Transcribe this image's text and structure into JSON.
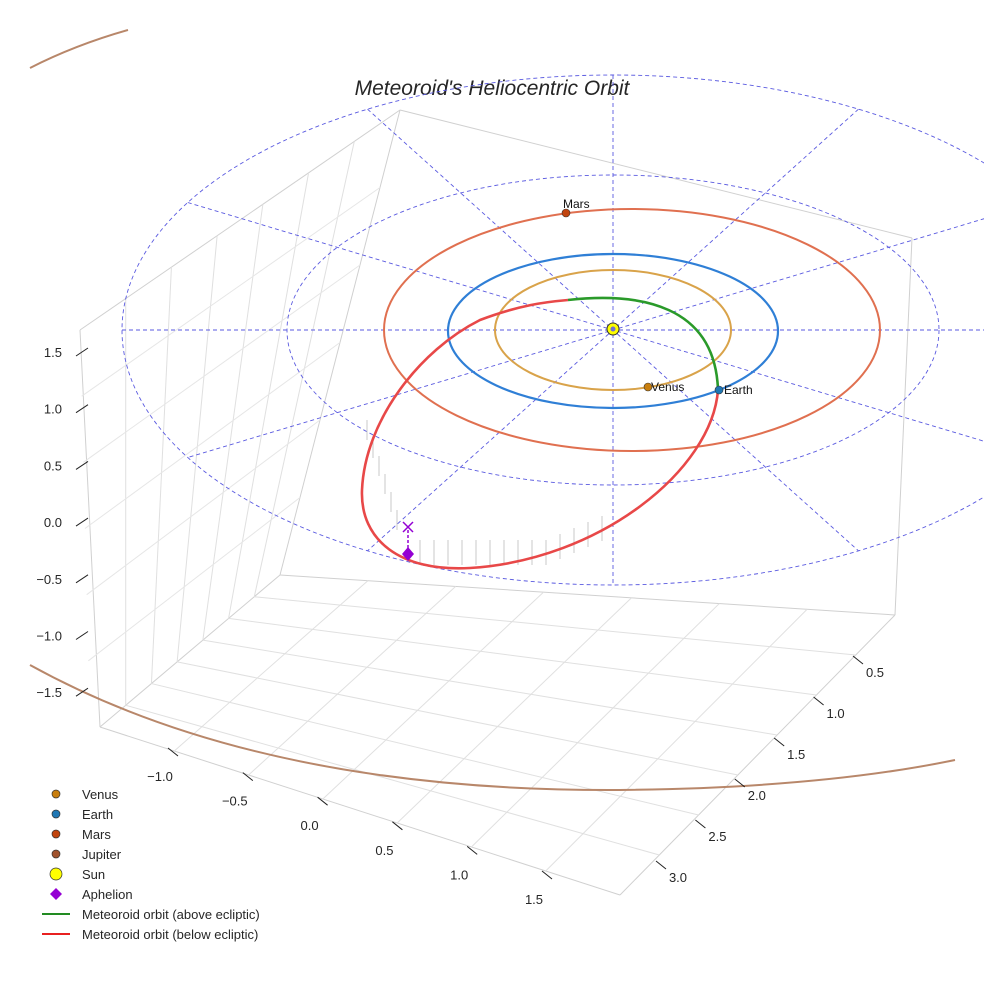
{
  "chart_data": {
    "type": "line",
    "projection": "3d",
    "title": "Meteoroid's Heliocentric Orbit",
    "xlabel": "",
    "ylabel": "",
    "zlabel": "",
    "xlim": [
      -1.3,
      1.8
    ],
    "ylim": [
      0.3,
      3.3
    ],
    "zlim": [
      -1.7,
      1.7
    ],
    "grid": true,
    "legend_position": "bottom-left",
    "x_ticks": [
      "−1.0",
      "−0.5",
      "0.0",
      "0.5",
      "1.0",
      "1.5"
    ],
    "y_ticks": [
      "0.5",
      "1.0",
      "1.5",
      "2.0",
      "2.5",
      "3.0"
    ],
    "z_ticks": [
      "1.5",
      "1.0",
      "0.5",
      "0.0",
      "−0.5",
      "−1.0",
      "−1.5"
    ],
    "planet_orbits_au": {
      "Venus": 0.723,
      "Earth": 1.0,
      "Mars": 1.524,
      "Jupiter": 5.2
    },
    "planet_labels": [
      "Mars",
      "Venus",
      "Earth"
    ],
    "legend": [
      {
        "label": "Venus",
        "marker": "circle",
        "color": "#c87e0e"
      },
      {
        "label": "Earth",
        "marker": "circle",
        "color": "#1f77b4"
      },
      {
        "label": "Mars",
        "marker": "circle",
        "color": "#c1440e"
      },
      {
        "label": "Jupiter",
        "marker": "circle",
        "color": "#a0522d"
      },
      {
        "label": "Sun",
        "marker": "circle-large",
        "color": "#ffff00"
      },
      {
        "label": "Aphelion",
        "marker": "diamond",
        "color": "#9400d3"
      },
      {
        "label": "Meteoroid orbit (above ecliptic)",
        "marker": "line",
        "color": "#228b22"
      },
      {
        "label": "Meteoroid orbit (below ecliptic)",
        "marker": "line",
        "color": "#e82020"
      }
    ],
    "colors": {
      "venus_orbit": "#d9a34a",
      "earth_orbit": "#2f7fd6",
      "mars_orbit": "#e07050",
      "jupiter_orbit": "#b8876a",
      "ecliptic_grid": "#5a5ae0"
    }
  }
}
